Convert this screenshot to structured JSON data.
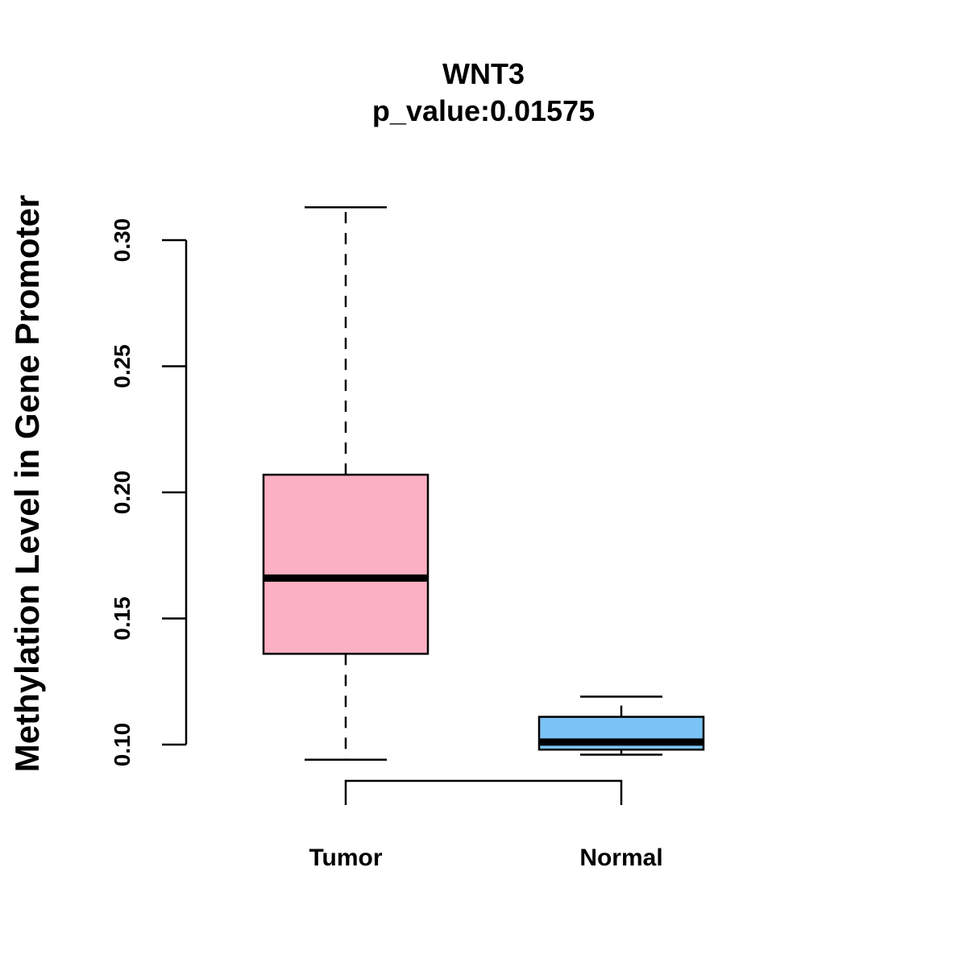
{
  "chart_data": {
    "type": "boxplot",
    "title": "WNT3",
    "subtitle": "p_value:0.01575",
    "xlabel": "",
    "ylabel": "Methylation Level in Gene Promoter",
    "ylim": [
      0.1,
      0.3
    ],
    "yticks": [
      0.1,
      0.15,
      0.2,
      0.25,
      0.3
    ],
    "ytick_labels": [
      "0.10",
      "0.15",
      "0.20",
      "0.25",
      "0.30"
    ],
    "categories": [
      "Tumor",
      "Normal"
    ],
    "groups": [
      {
        "name": "Tumor",
        "min": 0.094,
        "q1": 0.136,
        "median": 0.166,
        "q3": 0.207,
        "max": 0.313,
        "color": "#FCB0C3"
      },
      {
        "name": "Normal",
        "min": 0.096,
        "q1": 0.098,
        "median": 0.101,
        "q3": 0.111,
        "max": 0.119,
        "color": "#7BC3F5"
      }
    ],
    "significance_bracket": {
      "from": "Tumor",
      "to": "Normal"
    }
  }
}
